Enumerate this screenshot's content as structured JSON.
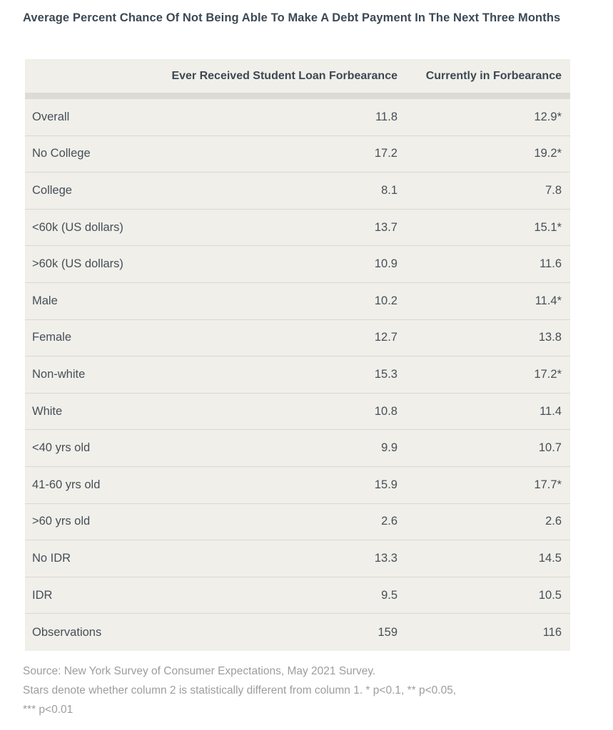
{
  "page": {
    "title": "Average Percent Chance Of Not Being Able To Make A Debt Payment In The Next Three Months"
  },
  "table": {
    "columns": {
      "col1": "Ever Received Student Loan Forbearance",
      "col2": "Currently in Forbearance"
    },
    "rows": [
      {
        "label": "Overall",
        "col1": "11.8",
        "col2": "12.9*"
      },
      {
        "label": "No College",
        "col1": "17.2",
        "col2": "19.2*"
      },
      {
        "label": "College",
        "col1": "8.1",
        "col2": "7.8"
      },
      {
        "label": "<60k (US dollars)",
        "col1": "13.7",
        "col2": "15.1*"
      },
      {
        "label": ">60k (US dollars)",
        "col1": "10.9",
        "col2": "11.6"
      },
      {
        "label": "Male",
        "col1": "10.2",
        "col2": "11.4*"
      },
      {
        "label": "Female",
        "col1": "12.7",
        "col2": "13.8"
      },
      {
        "label": "Non-white",
        "col1": "15.3",
        "col2": "17.2*"
      },
      {
        "label": "White",
        "col1": "10.8",
        "col2": "11.4"
      },
      {
        "label": "<40 yrs old",
        "col1": "9.9",
        "col2": "10.7"
      },
      {
        "label": "41-60 yrs old",
        "col1": "15.9",
        "col2": "17.7*"
      },
      {
        "label": ">60 yrs old",
        "col1": "2.6",
        "col2": "2.6"
      },
      {
        "label": "No IDR",
        "col1": "13.3",
        "col2": "14.5"
      },
      {
        "label": "IDR",
        "col1": "9.5",
        "col2": "10.5"
      },
      {
        "label": "Observations",
        "col1": "159",
        "col2": "116"
      }
    ]
  },
  "footer": {
    "line1": "Source: New York Survey of Consumer Expectations, May 2021 Survey.",
    "line2": "Stars denote whether column 2 is statistically different from column 1. * p<0.1, ** p<0.05,",
    "line3": "*** p<0.01"
  },
  "colors": {
    "table_background": "#f0efe9",
    "header_band": "#dcdbd6",
    "row_divider": "#d9d8d3",
    "heading_text": "#3d4954",
    "cell_text": "#454f59",
    "footer_text": "#9d9d9d"
  },
  "chart_data": {
    "type": "table",
    "title": "Average Percent Chance Of Not Being Able To Make A Debt Payment In The Next Three Months",
    "columns": [
      "",
      "Ever Received Student Loan Forbearance",
      "Currently in Forbearance"
    ],
    "rows": [
      [
        "Overall",
        11.8,
        "12.9*"
      ],
      [
        "No College",
        17.2,
        "19.2*"
      ],
      [
        "College",
        8.1,
        7.8
      ],
      [
        "<60k (US dollars)",
        13.7,
        "15.1*"
      ],
      [
        ">60k (US dollars)",
        10.9,
        11.6
      ],
      [
        "Male",
        10.2,
        "11.4*"
      ],
      [
        "Female",
        12.7,
        13.8
      ],
      [
        "Non-white",
        15.3,
        "17.2*"
      ],
      [
        "White",
        10.8,
        11.4
      ],
      [
        "<40 yrs old",
        9.9,
        10.7
      ],
      [
        "41-60 yrs old",
        15.9,
        "17.7*"
      ],
      [
        ">60 yrs old",
        2.6,
        2.6
      ],
      [
        "No IDR",
        13.3,
        14.5
      ],
      [
        "IDR",
        9.5,
        10.5
      ],
      [
        "Observations",
        159,
        116
      ]
    ],
    "source": "Source: New York Survey of Consumer Expectations, May 2021 Survey.",
    "note": "Stars denote whether column 2 is statistically different from column 1. * p<0.1, ** p<0.05, *** p<0.01"
  }
}
